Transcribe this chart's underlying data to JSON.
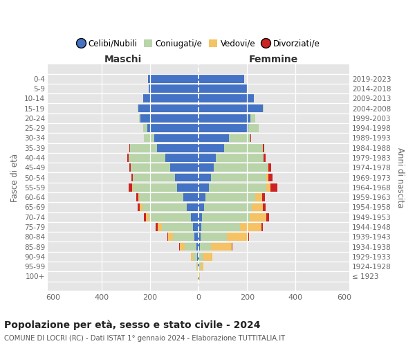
{
  "age_groups": [
    "100+",
    "95-99",
    "90-94",
    "85-89",
    "80-84",
    "75-79",
    "70-74",
    "65-69",
    "60-64",
    "55-59",
    "50-54",
    "45-49",
    "40-44",
    "35-39",
    "30-34",
    "25-29",
    "20-24",
    "15-19",
    "10-14",
    "5-9",
    "0-4"
  ],
  "birth_years": [
    "≤ 1923",
    "1924-1928",
    "1929-1933",
    "1934-1938",
    "1939-1943",
    "1944-1948",
    "1949-1953",
    "1954-1958",
    "1959-1963",
    "1964-1968",
    "1969-1973",
    "1974-1978",
    "1979-1983",
    "1984-1988",
    "1989-1993",
    "1994-1998",
    "1999-2003",
    "2004-2008",
    "2009-2013",
    "2014-2018",
    "2019-2023"
  ],
  "colors": {
    "celibe": "#4472c4",
    "coniugato": "#b8d4a8",
    "vedovo": "#f5c264",
    "divorziato": "#cc2222"
  },
  "maschi": {
    "celibe": [
      2,
      3,
      5,
      8,
      18,
      22,
      30,
      48,
      62,
      88,
      98,
      118,
      138,
      170,
      182,
      210,
      238,
      248,
      228,
      204,
      208
    ],
    "coniugato": [
      1,
      4,
      18,
      48,
      88,
      128,
      175,
      182,
      182,
      182,
      172,
      162,
      150,
      112,
      42,
      18,
      8,
      4,
      1,
      0,
      0
    ],
    "vedovo": [
      0,
      2,
      8,
      22,
      18,
      18,
      12,
      12,
      4,
      4,
      1,
      0,
      0,
      0,
      0,
      0,
      0,
      0,
      0,
      0,
      0
    ],
    "divorziato": [
      0,
      0,
      0,
      1,
      4,
      8,
      8,
      8,
      8,
      14,
      6,
      6,
      6,
      4,
      1,
      0,
      0,
      0,
      0,
      0,
      0
    ]
  },
  "femmine": {
    "celibe": [
      1,
      2,
      4,
      6,
      8,
      10,
      15,
      22,
      28,
      42,
      52,
      62,
      72,
      105,
      125,
      205,
      215,
      265,
      228,
      198,
      188
    ],
    "coniugato": [
      1,
      6,
      16,
      46,
      108,
      160,
      196,
      196,
      206,
      236,
      228,
      222,
      195,
      160,
      90,
      42,
      18,
      4,
      1,
      0,
      0
    ],
    "vedovo": [
      4,
      12,
      38,
      86,
      88,
      88,
      68,
      46,
      28,
      18,
      8,
      4,
      2,
      1,
      0,
      0,
      0,
      0,
      0,
      0,
      0
    ],
    "divorziato": [
      0,
      0,
      0,
      1,
      4,
      8,
      12,
      12,
      12,
      28,
      18,
      12,
      6,
      4,
      1,
      1,
      1,
      0,
      0,
      0,
      0
    ]
  },
  "title": "Popolazione per età, sesso e stato civile - 2024",
  "subtitle": "COMUNE DI LOCRI (RC) - Dati ISTAT 1° gennaio 2024 - Elaborazione TUTTITALIA.IT",
  "xlabel_left": "Maschi",
  "xlabel_right": "Femmine",
  "ylabel_left": "Fasce di età",
  "ylabel_right": "Anni di nascita",
  "legend_labels": [
    "Celibi/Nubili",
    "Coniugati/e",
    "Vedovi/e",
    "Divorziati/e"
  ],
  "xlim": 620,
  "bg_color": "#ffffff",
  "plot_bg": "#e5e5e5"
}
